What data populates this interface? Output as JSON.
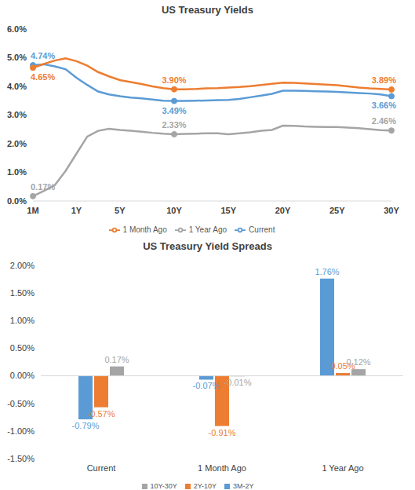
{
  "chart_data": [
    {
      "type": "line",
      "title": "US Treasury Yields",
      "categories": [
        "1M",
        null,
        null,
        null,
        "1Y",
        null,
        null,
        null,
        "5Y",
        null,
        null,
        null,
        null,
        "10Y",
        null,
        null,
        null,
        null,
        "15Y",
        null,
        null,
        null,
        null,
        "20Y",
        null,
        null,
        null,
        null,
        "25Y",
        null,
        null,
        null,
        null,
        "30Y"
      ],
      "ylim": [
        0,
        6
      ],
      "yticks": [
        {
          "value": 0,
          "label": "0.0%"
        },
        {
          "value": 1,
          "label": "1.0%"
        },
        {
          "value": 2,
          "label": "2.0%"
        },
        {
          "value": 3,
          "label": "3.0%"
        },
        {
          "value": 4,
          "label": "4.0%"
        },
        {
          "value": 5,
          "label": "5.0%"
        },
        {
          "value": 6,
          "label": "6.0%"
        }
      ],
      "grid": false,
      "legend": "bottom",
      "series": [
        {
          "name": "Current",
          "color": "#5b9bd5",
          "marker": "circle",
          "values": [
            4.74,
            4.77,
            4.7,
            4.6,
            4.3,
            4.05,
            3.82,
            3.72,
            3.66,
            3.61,
            3.58,
            3.54,
            3.5,
            3.49,
            3.49,
            3.5,
            3.51,
            3.52,
            3.53,
            3.56,
            3.62,
            3.68,
            3.74,
            3.85,
            3.85,
            3.84,
            3.83,
            3.82,
            3.81,
            3.79,
            3.77,
            3.75,
            3.72,
            3.66
          ],
          "value_labels": [
            "4.74%",
            null,
            null,
            null,
            null,
            null,
            null,
            null,
            null,
            null,
            null,
            null,
            null,
            "3.49%",
            null,
            null,
            null,
            null,
            null,
            null,
            null,
            null,
            null,
            null,
            null,
            null,
            null,
            null,
            null,
            null,
            null,
            null,
            null,
            "3.66%"
          ]
        },
        {
          "name": "1 Month Ago",
          "color": "#ed7d31",
          "marker": "circle",
          "values": [
            4.65,
            4.78,
            4.9,
            4.98,
            4.88,
            4.72,
            4.5,
            4.35,
            4.22,
            4.15,
            4.08,
            4.0,
            3.94,
            3.9,
            3.9,
            3.91,
            3.93,
            3.94,
            3.96,
            3.98,
            4.01,
            4.05,
            4.09,
            4.13,
            4.12,
            4.1,
            4.08,
            4.06,
            4.04,
            4.0,
            3.96,
            3.93,
            3.91,
            3.89
          ],
          "value_labels": [
            "4.65%",
            null,
            null,
            null,
            null,
            null,
            null,
            null,
            null,
            null,
            null,
            null,
            null,
            "3.90%",
            null,
            null,
            null,
            null,
            null,
            null,
            null,
            null,
            null,
            null,
            null,
            null,
            null,
            null,
            null,
            null,
            null,
            null,
            null,
            "3.89%"
          ]
        },
        {
          "name": "1 Year Ago",
          "color": "#a5a5a5",
          "marker": "circle",
          "values": [
            0.17,
            0.35,
            0.55,
            1.05,
            1.65,
            2.25,
            2.45,
            2.52,
            2.48,
            2.45,
            2.42,
            2.38,
            2.35,
            2.33,
            2.34,
            2.35,
            2.36,
            2.36,
            2.33,
            2.36,
            2.4,
            2.45,
            2.48,
            2.63,
            2.62,
            2.6,
            2.59,
            2.58,
            2.58,
            2.56,
            2.54,
            2.51,
            2.47,
            2.46
          ],
          "value_labels": [
            "0.17%",
            null,
            null,
            null,
            null,
            null,
            null,
            null,
            null,
            null,
            null,
            null,
            null,
            "2.33%",
            null,
            null,
            null,
            null,
            null,
            null,
            null,
            null,
            null,
            null,
            null,
            null,
            null,
            null,
            null,
            null,
            null,
            null,
            null,
            "2.46%"
          ]
        }
      ]
    },
    {
      "type": "bar",
      "title": "US Treasury Yield Spreads",
      "categories": [
        "Current",
        "1 Month Ago",
        "1 Year Ago"
      ],
      "ylim": [
        -1.5,
        2
      ],
      "yticks": [
        {
          "value": -1.5,
          "label": "-1.50%"
        },
        {
          "value": -1,
          "label": "-1.00%"
        },
        {
          "value": -0.5,
          "label": "-0.50%"
        },
        {
          "value": 0,
          "label": "0.00%"
        },
        {
          "value": 0.5,
          "label": "0.50%"
        },
        {
          "value": 1,
          "label": "1.00%"
        },
        {
          "value": 1.5,
          "label": "1.50%"
        },
        {
          "value": 2,
          "label": "2.00%"
        }
      ],
      "grid": false,
      "legend": "bottom",
      "data_labels": true,
      "series": [
        {
          "name": "3M-2Y",
          "color": "#5b9bd5",
          "values": [
            -0.79,
            -0.07,
            1.76
          ],
          "value_labels": [
            "-0.79%",
            "-0.07%",
            "1.76%"
          ]
        },
        {
          "name": "2Y-10Y",
          "color": "#ed7d31",
          "values": [
            -0.57,
            -0.91,
            0.05
          ],
          "value_labels": [
            "-0.57%",
            "-0.91%",
            "0.05%"
          ]
        },
        {
          "name": "10Y-30Y",
          "color": "#a5a5a5",
          "values": [
            0.17,
            -0.01,
            0.12
          ],
          "value_labels": [
            "0.17%",
            "-0.01%",
            "0.12%"
          ]
        }
      ]
    }
  ]
}
